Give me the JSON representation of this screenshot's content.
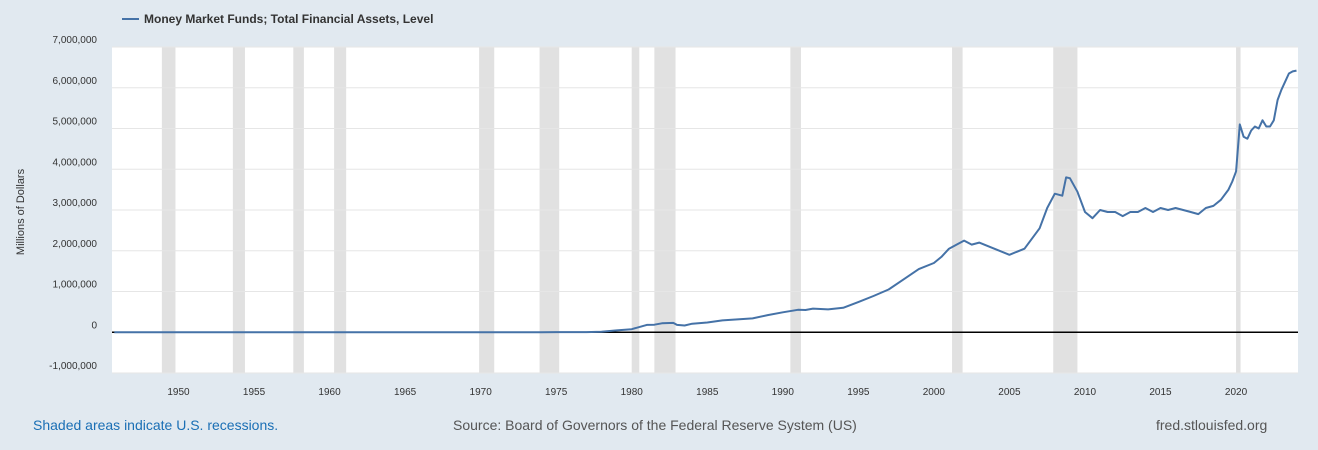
{
  "footer": {
    "recession_note": "Shaded areas indicate U.S. recessions.",
    "source": "Source: Board of Governors of the Federal Reserve System (US)",
    "site": "fred.stlouisfed.org"
  },
  "colors": {
    "background": "#e1e9f0",
    "plot_background": "#ffffff",
    "series_line": "#4572a7",
    "recession_shade": "#e1e1e1",
    "zero_line": "#000000",
    "link": "#1a6fb5"
  },
  "chart_data": {
    "type": "line",
    "title": "",
    "legend": [
      "Money Market Funds; Total Financial Assets, Level"
    ],
    "legend_position": "top-left",
    "xlabel": "",
    "ylabel": "Millions of Dollars",
    "xlim": [
      1945.6,
      2024.1
    ],
    "ylim": [
      -1000000,
      7000000
    ],
    "grid": true,
    "y_ticks": [
      -1000000,
      0,
      1000000,
      2000000,
      3000000,
      4000000,
      5000000,
      6000000,
      7000000
    ],
    "y_tick_labels": [
      "-1,000,000",
      "0",
      "1,000,000",
      "2,000,000",
      "3,000,000",
      "4,000,000",
      "5,000,000",
      "6,000,000",
      "7,000,000"
    ],
    "x_ticks": [
      1950,
      1955,
      1960,
      1965,
      1970,
      1975,
      1980,
      1985,
      1990,
      1995,
      2000,
      2005,
      2010,
      2015,
      2020
    ],
    "x_tick_labels": [
      "1950",
      "1955",
      "1960",
      "1965",
      "1970",
      "1975",
      "1980",
      "1985",
      "1990",
      "1995",
      "2000",
      "2005",
      "2010",
      "2015",
      "2020"
    ],
    "recessions": [
      [
        1948.9,
        1949.8
      ],
      [
        1953.6,
        1954.4
      ],
      [
        1957.6,
        1958.3
      ],
      [
        1960.3,
        1961.1
      ],
      [
        1969.9,
        1970.9
      ],
      [
        1973.9,
        1975.2
      ],
      [
        1980.0,
        1980.5
      ],
      [
        1981.5,
        1982.9
      ],
      [
        1990.5,
        1991.2
      ],
      [
        2001.2,
        2001.9
      ],
      [
        2007.9,
        2009.5
      ],
      [
        2020.0,
        2020.3
      ]
    ],
    "series": [
      {
        "name": "Money Market Funds; Total Financial Assets, Level",
        "x": [
          1945.75,
          1970,
          1974,
          1975,
          1976,
          1977,
          1978,
          1979,
          1980,
          1981,
          1981.5,
          1982,
          1982.75,
          1983,
          1983.5,
          1984,
          1985,
          1986,
          1987,
          1988,
          1989,
          1990,
          1991,
          1991.5,
          1992,
          1993,
          1994,
          1995,
          1996,
          1997,
          1998,
          1999,
          2000,
          2000.5,
          2001,
          2001.5,
          2002,
          2002.5,
          2003,
          2004,
          2005,
          2006,
          2007,
          2007.5,
          2008,
          2008.5,
          2008.75,
          2009,
          2009.5,
          2010,
          2010.5,
          2011,
          2011.5,
          2012,
          2012.5,
          2013,
          2013.5,
          2014,
          2014.5,
          2015,
          2015.5,
          2016,
          2016.5,
          2017,
          2017.5,
          2018,
          2018.5,
          2019,
          2019.5,
          2019.75,
          2020,
          2020.25,
          2020.5,
          2020.75,
          2021,
          2021.25,
          2021.5,
          2021.75,
          2022,
          2022.25,
          2022.5,
          2022.75,
          2023,
          2023.25,
          2023.5,
          2023.75,
          2024
        ],
        "y": [
          0,
          0,
          2000,
          3500,
          3500,
          3800,
          10000,
          45000,
          75000,
          180000,
          185000,
          220000,
          230000,
          180000,
          165000,
          210000,
          240000,
          290000,
          315000,
          340000,
          420000,
          490000,
          550000,
          545000,
          580000,
          560000,
          600000,
          740000,
          890000,
          1050000,
          1300000,
          1550000,
          1700000,
          1850000,
          2050000,
          2150000,
          2250000,
          2150000,
          2200000,
          2050000,
          1900000,
          2050000,
          2550000,
          3050000,
          3400000,
          3350000,
          3800000,
          3780000,
          3450000,
          2950000,
          2800000,
          3000000,
          2950000,
          2950000,
          2850000,
          2950000,
          2950000,
          3050000,
          2950000,
          3050000,
          3000000,
          3050000,
          3000000,
          2950000,
          2900000,
          3050000,
          3100000,
          3250000,
          3500000,
          3700000,
          3950000,
          5100000,
          4800000,
          4750000,
          4950000,
          5050000,
          5000000,
          5200000,
          5050000,
          5050000,
          5200000,
          5700000,
          5950000,
          6150000,
          6350000,
          6400000,
          6420000
        ]
      }
    ]
  }
}
